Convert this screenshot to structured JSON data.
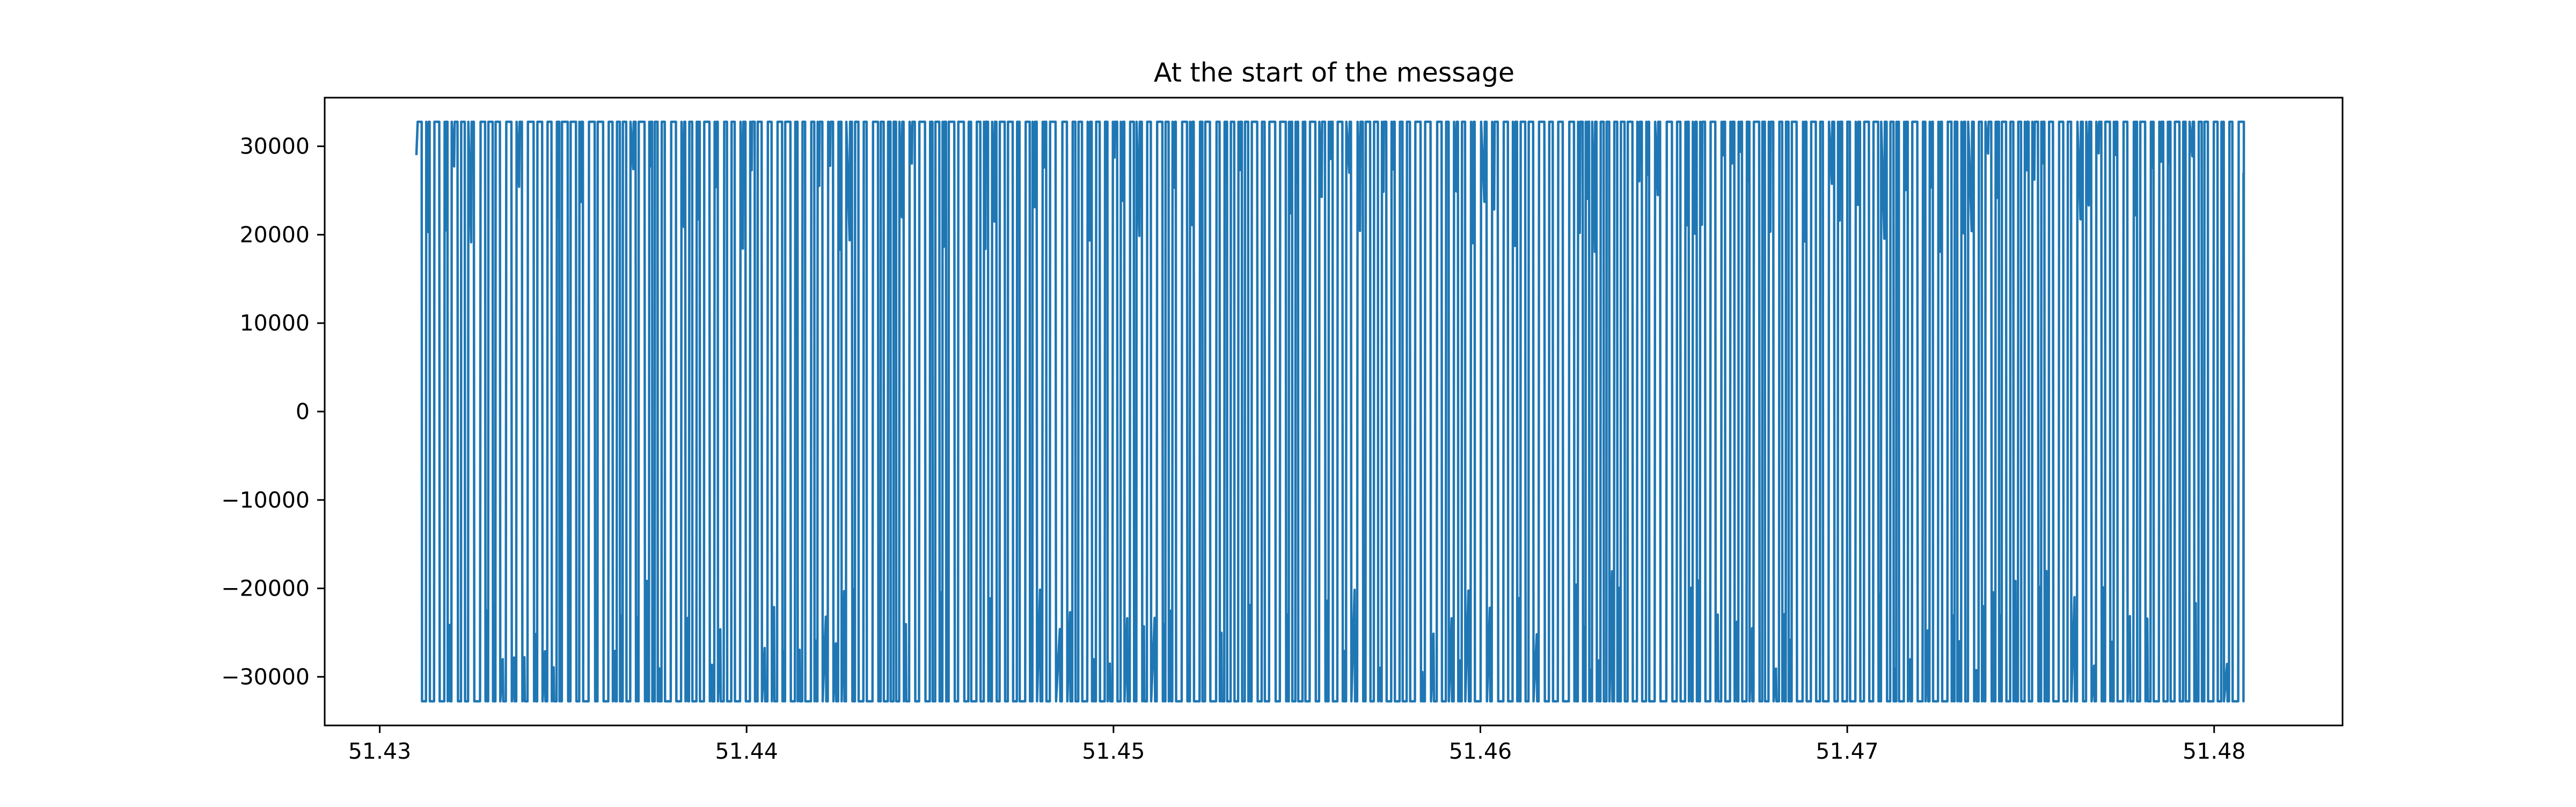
{
  "chart_data": {
    "type": "line",
    "title": "At the start of the message",
    "xlabel": "",
    "ylabel": "",
    "xlim": [
      51.4285,
      51.4835
    ],
    "ylim": [
      -35500,
      35500
    ],
    "x_ticks": [
      51.43,
      51.44,
      51.45,
      51.46,
      51.47,
      51.48
    ],
    "x_tick_labels": [
      "51.43",
      "51.44",
      "51.45",
      "51.46",
      "51.47",
      "51.48"
    ],
    "y_ticks": [
      30000,
      20000,
      10000,
      0,
      -10000,
      -20000,
      -30000
    ],
    "y_tick_labels": [
      "30000",
      "20000",
      "10000",
      "0",
      "−10000",
      "−20000",
      "−30000"
    ],
    "grid": false,
    "colors": {
      "series": "#1f77b4",
      "axes": "#000000",
      "background": "#ffffff"
    },
    "series": [
      {
        "x_start": 51.431,
        "x_end": 51.4808,
        "y_max": 32767,
        "y_min": -32767,
        "y_start": 29000,
        "y_end": 27000,
        "cycles": 210
      }
    ]
  }
}
